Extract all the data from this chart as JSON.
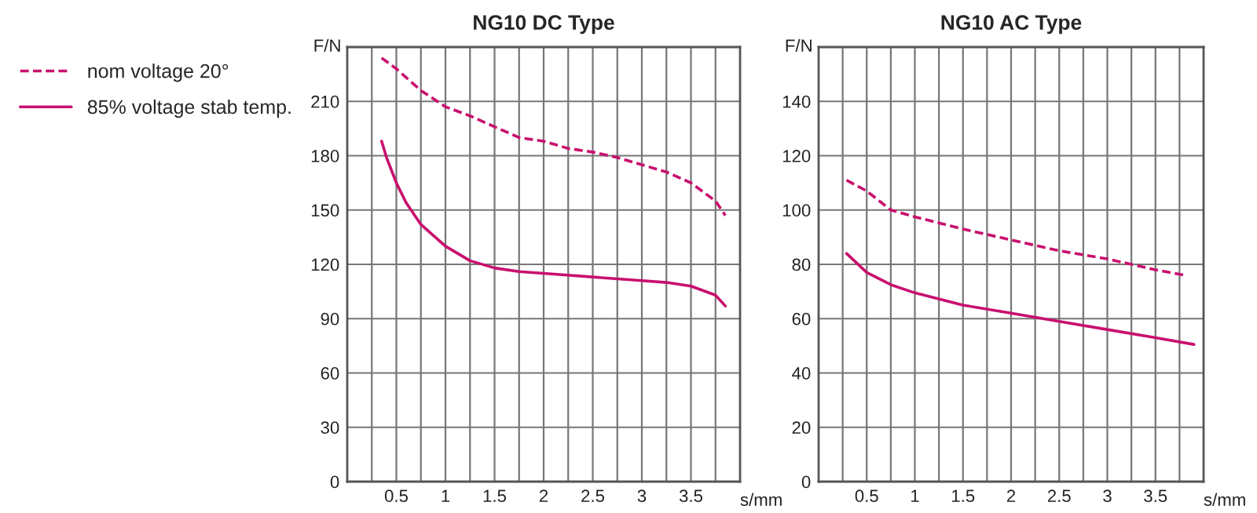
{
  "chart_data": [
    {
      "type": "line",
      "title": "NG10 DC Type",
      "xlabel": "s/mm",
      "ylabel": "F/N",
      "legend": "left",
      "grid": true,
      "xlim": [
        0,
        4
      ],
      "xticks": [
        {
          "value": 0.25,
          "label": null
        },
        0.5,
        {
          "value": 0.75,
          "label": null
        },
        1,
        {
          "value": 1.25,
          "label": null
        },
        1.5,
        {
          "value": 1.75,
          "label": null
        },
        2,
        {
          "value": 2.25,
          "label": null
        },
        2.5,
        {
          "value": 2.75,
          "label": null
        },
        3,
        {
          "value": 3.25,
          "label": null
        },
        3.5,
        {
          "value": 3.75,
          "label": null
        }
      ],
      "ylim": [
        0,
        240
      ],
      "yticks": [
        0,
        30,
        60,
        90,
        120,
        150,
        180,
        210
      ],
      "series": [
        {
          "name": "nom voltage 20°",
          "color": "#c8106e",
          "line_style": "dashed",
          "x": [
            0.35,
            0.5,
            0.75,
            1.0,
            1.25,
            1.5,
            1.75,
            2.0,
            2.25,
            2.5,
            2.75,
            3.0,
            3.25,
            3.5,
            3.75,
            3.85
          ],
          "values": [
            234,
            228,
            216,
            207,
            202,
            196,
            190,
            188,
            184,
            182,
            179,
            175,
            171,
            165,
            155,
            147
          ]
        },
        {
          "name": "85% voltage stab temp.",
          "color": "#c8106e",
          "line_style": "solid",
          "x": [
            0.35,
            0.4,
            0.5,
            0.6,
            0.75,
            1.0,
            1.25,
            1.5,
            1.75,
            2.0,
            2.5,
            3.0,
            3.25,
            3.5,
            3.75,
            3.85
          ],
          "values": [
            188,
            179,
            165,
            154,
            142,
            130,
            122,
            118,
            116,
            115,
            113,
            111,
            110,
            108,
            103,
            97
          ]
        }
      ]
    },
    {
      "type": "line",
      "title": "NG10 AC Type",
      "xlabel": "s/mm",
      "ylabel": "F/N",
      "grid": true,
      "xlim": [
        0,
        4
      ],
      "xticks": [
        {
          "value": 0.25,
          "label": null
        },
        0.5,
        {
          "value": 0.75,
          "label": null
        },
        1,
        {
          "value": 1.25,
          "label": null
        },
        1.5,
        {
          "value": 1.75,
          "label": null
        },
        2,
        {
          "value": 2.25,
          "label": null
        },
        2.5,
        {
          "value": 2.75,
          "label": null
        },
        3,
        {
          "value": 3.25,
          "label": null
        },
        3.5,
        {
          "value": 3.75,
          "label": null
        }
      ],
      "ylim": [
        0,
        160
      ],
      "yticks": [
        0,
        20,
        40,
        60,
        80,
        100,
        120,
        140
      ],
      "series": [
        {
          "color": "#c8106e",
          "line_style": "dashed",
          "x": [
            0.29,
            0.5,
            0.75,
            1.0,
            1.5,
            2.0,
            2.5,
            3.0,
            3.5,
            3.8
          ],
          "values": [
            111,
            107,
            100,
            97.5,
            93,
            89,
            85,
            82,
            78,
            76
          ]
        },
        {
          "color": "#c8106e",
          "line_style": "solid",
          "x": [
            0.29,
            0.5,
            0.75,
            1.0,
            1.5,
            2.0,
            2.5,
            3.0,
            3.5,
            3.9
          ],
          "values": [
            84,
            77,
            72.5,
            69.5,
            65,
            62,
            59,
            56,
            53,
            50.5
          ]
        }
      ]
    }
  ]
}
